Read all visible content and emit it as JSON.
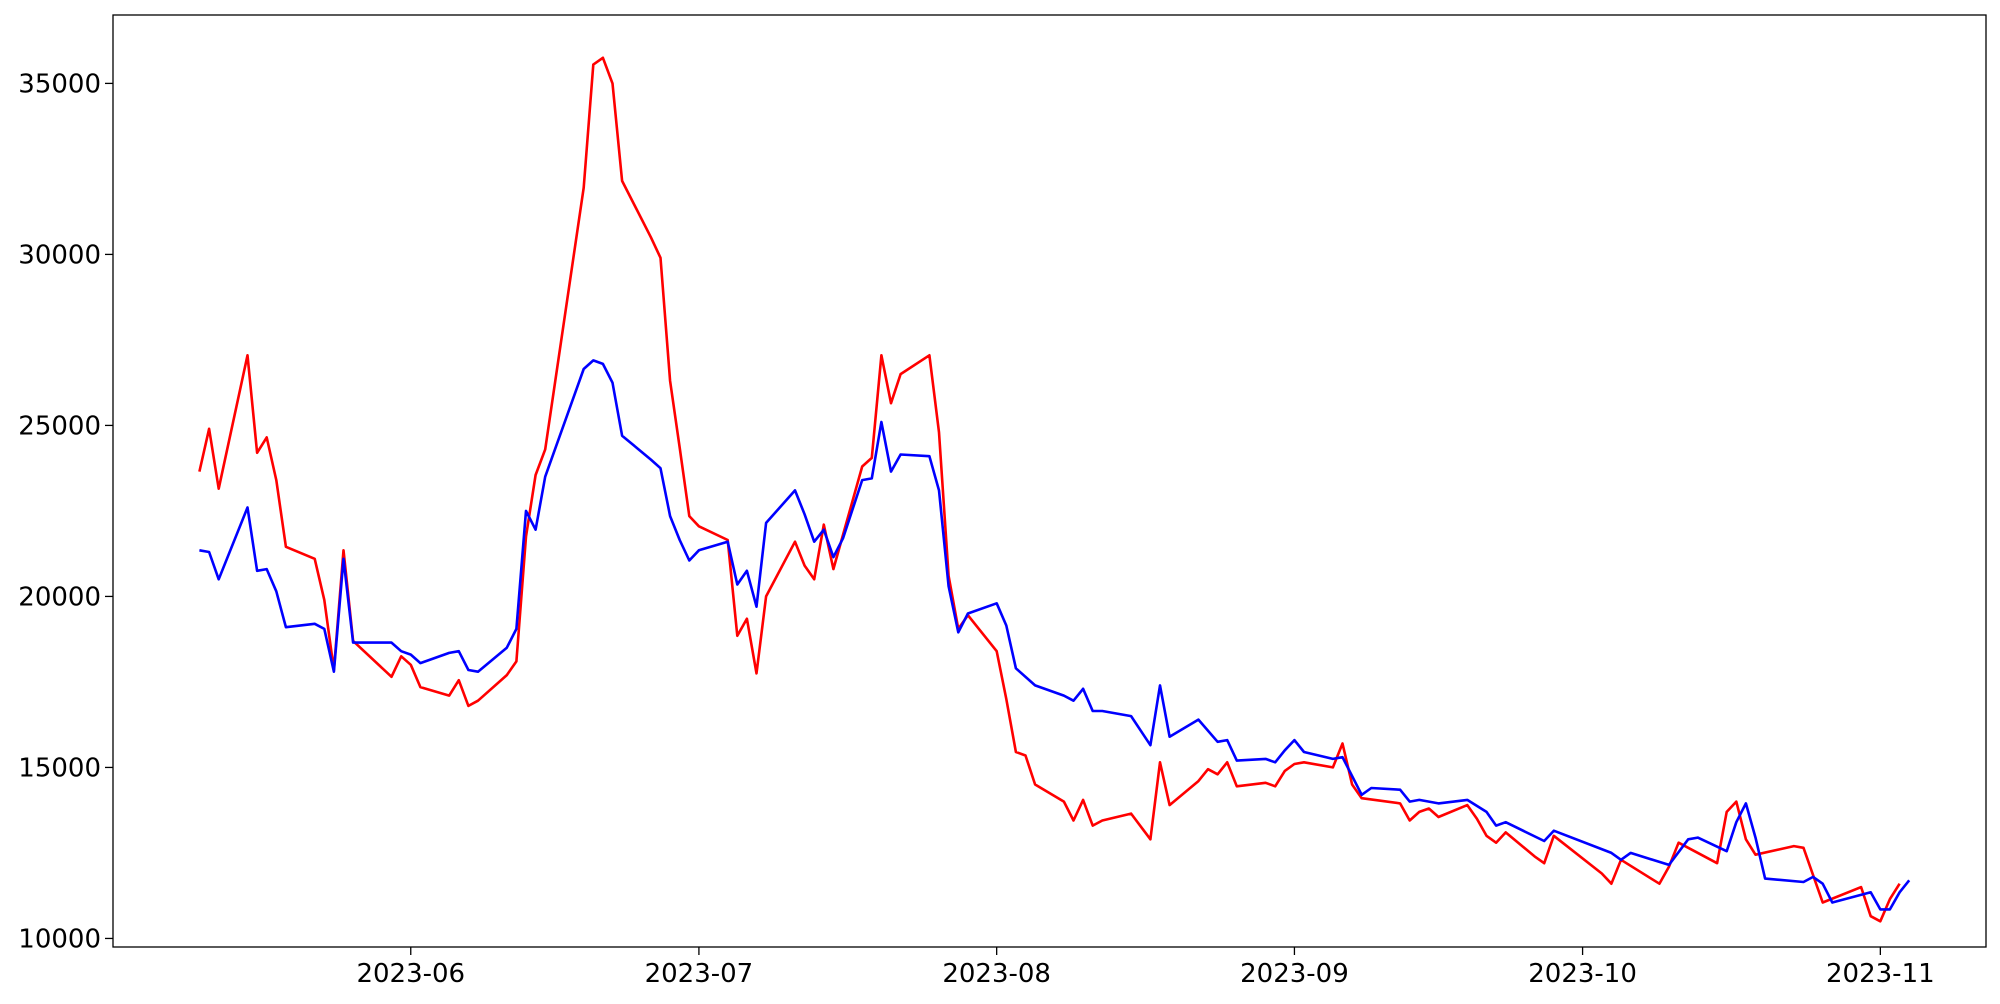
{
  "chart_data": {
    "type": "line",
    "title": "",
    "xlabel": "",
    "ylabel": "",
    "x_axis_type": "date",
    "xlim": [
      "2023-05-01",
      "2023-11-12"
    ],
    "ylim": [
      9750,
      37000
    ],
    "grid": false,
    "x_ticks": [
      {
        "value": "2023-06-01",
        "label": "2023-06"
      },
      {
        "value": "2023-07-01",
        "label": "2023-07"
      },
      {
        "value": "2023-08-01",
        "label": "2023-08"
      },
      {
        "value": "2023-09-01",
        "label": "2023-09"
      },
      {
        "value": "2023-10-01",
        "label": "2023-10"
      },
      {
        "value": "2023-11-01",
        "label": "2023-11"
      }
    ],
    "y_ticks": [
      {
        "value": 10000,
        "label": "10000"
      },
      {
        "value": 15000,
        "label": "15000"
      },
      {
        "value": 20000,
        "label": "20000"
      },
      {
        "value": 25000,
        "label": "25000"
      },
      {
        "value": 30000,
        "label": "30000"
      },
      {
        "value": 35000,
        "label": "35000"
      }
    ],
    "series": [
      {
        "color": "#ff0000",
        "points": [
          [
            "2023-05-10",
            23650
          ],
          [
            "2023-05-11",
            24900
          ],
          [
            "2023-05-12",
            23150
          ],
          [
            "2023-05-15",
            27050
          ],
          [
            "2023-05-16",
            24200
          ],
          [
            "2023-05-17",
            24650
          ],
          [
            "2023-05-18",
            23400
          ],
          [
            "2023-05-19",
            21450
          ],
          [
            "2023-05-22",
            21100
          ],
          [
            "2023-05-23",
            19900
          ],
          [
            "2023-05-24",
            17850
          ],
          [
            "2023-05-25",
            21350
          ],
          [
            "2023-05-26",
            18700
          ],
          [
            "2023-05-30",
            17650
          ],
          [
            "2023-05-31",
            18250
          ],
          [
            "2023-06-01",
            18000
          ],
          [
            "2023-06-02",
            17350
          ],
          [
            "2023-06-05",
            17100
          ],
          [
            "2023-06-06",
            17550
          ],
          [
            "2023-06-07",
            16800
          ],
          [
            "2023-06-08",
            16950
          ],
          [
            "2023-06-11",
            17700
          ],
          [
            "2023-06-12",
            18100
          ],
          [
            "2023-06-13",
            21750
          ],
          [
            "2023-06-14",
            23550
          ],
          [
            "2023-06-15",
            24300
          ],
          [
            "2023-06-19",
            31950
          ],
          [
            "2023-06-20",
            35550
          ],
          [
            "2023-06-21",
            35750
          ],
          [
            "2023-06-22",
            35000
          ],
          [
            "2023-06-23",
            32150
          ],
          [
            "2023-06-26",
            30500
          ],
          [
            "2023-06-27",
            29900
          ],
          [
            "2023-06-28",
            26300
          ],
          [
            "2023-06-29",
            24350
          ],
          [
            "2023-06-30",
            22350
          ],
          [
            "2023-07-01",
            22050
          ],
          [
            "2023-07-04",
            21650
          ],
          [
            "2023-07-05",
            18850
          ],
          [
            "2023-07-06",
            19350
          ],
          [
            "2023-07-07",
            17750
          ],
          [
            "2023-07-08",
            20000
          ],
          [
            "2023-07-11",
            21600
          ],
          [
            "2023-07-12",
            20900
          ],
          [
            "2023-07-13",
            20500
          ],
          [
            "2023-07-14",
            22100
          ],
          [
            "2023-07-15",
            20800
          ],
          [
            "2023-07-16",
            21800
          ],
          [
            "2023-07-18",
            23800
          ],
          [
            "2023-07-19",
            24050
          ],
          [
            "2023-07-20",
            27050
          ],
          [
            "2023-07-21",
            25650
          ],
          [
            "2023-07-22",
            26500
          ],
          [
            "2023-07-25",
            27050
          ],
          [
            "2023-07-26",
            24800
          ],
          [
            "2023-07-27",
            20600
          ],
          [
            "2023-07-28",
            19050
          ],
          [
            "2023-07-29",
            19450
          ],
          [
            "2023-08-01",
            18400
          ],
          [
            "2023-08-02",
            17000
          ],
          [
            "2023-08-03",
            15450
          ],
          [
            "2023-08-04",
            15350
          ],
          [
            "2023-08-05",
            14500
          ],
          [
            "2023-08-08",
            14000
          ],
          [
            "2023-08-09",
            13450
          ],
          [
            "2023-08-10",
            14050
          ],
          [
            "2023-08-11",
            13300
          ],
          [
            "2023-08-12",
            13450
          ],
          [
            "2023-08-15",
            13650
          ],
          [
            "2023-08-17",
            12900
          ],
          [
            "2023-08-18",
            15150
          ],
          [
            "2023-08-19",
            13900
          ],
          [
            "2023-08-22",
            14600
          ],
          [
            "2023-08-23",
            14950
          ],
          [
            "2023-08-24",
            14800
          ],
          [
            "2023-08-25",
            15150
          ],
          [
            "2023-08-26",
            14450
          ],
          [
            "2023-08-29",
            14550
          ],
          [
            "2023-08-30",
            14450
          ],
          [
            "2023-08-31",
            14900
          ],
          [
            "2023-09-01",
            15100
          ],
          [
            "2023-09-02",
            15150
          ],
          [
            "2023-09-05",
            15000
          ],
          [
            "2023-09-06",
            15700
          ],
          [
            "2023-09-07",
            14500
          ],
          [
            "2023-09-08",
            14100
          ],
          [
            "2023-09-12",
            13950
          ],
          [
            "2023-09-13",
            13450
          ],
          [
            "2023-09-14",
            13700
          ],
          [
            "2023-09-15",
            13800
          ],
          [
            "2023-09-16",
            13550
          ],
          [
            "2023-09-19",
            13900
          ],
          [
            "2023-09-20",
            13500
          ],
          [
            "2023-09-21",
            13000
          ],
          [
            "2023-09-22",
            12800
          ],
          [
            "2023-09-23",
            13100
          ],
          [
            "2023-09-26",
            12400
          ],
          [
            "2023-09-27",
            12200
          ],
          [
            "2023-09-28",
            13000
          ],
          [
            "2023-10-03",
            11900
          ],
          [
            "2023-10-04",
            11600
          ],
          [
            "2023-10-05",
            12300
          ],
          [
            "2023-10-09",
            11600
          ],
          [
            "2023-10-10",
            12100
          ],
          [
            "2023-10-11",
            12800
          ],
          [
            "2023-10-15",
            12200
          ],
          [
            "2023-10-16",
            13700
          ],
          [
            "2023-10-17",
            14000
          ],
          [
            "2023-10-18",
            12900
          ],
          [
            "2023-10-19",
            12450
          ],
          [
            "2023-10-23",
            12700
          ],
          [
            "2023-10-24",
            12650
          ],
          [
            "2023-10-26",
            11050
          ],
          [
            "2023-10-30",
            11500
          ],
          [
            "2023-10-31",
            10650
          ],
          [
            "2023-11-01",
            10500
          ],
          [
            "2023-11-02",
            11150
          ],
          [
            "2023-11-03",
            11600
          ]
        ]
      },
      {
        "color": "#0000ff",
        "points": [
          [
            "2023-05-10",
            21350
          ],
          [
            "2023-05-11",
            21300
          ],
          [
            "2023-05-12",
            20500
          ],
          [
            "2023-05-15",
            22600
          ],
          [
            "2023-05-16",
            20750
          ],
          [
            "2023-05-17",
            20800
          ],
          [
            "2023-05-18",
            20150
          ],
          [
            "2023-05-19",
            19100
          ],
          [
            "2023-05-22",
            19200
          ],
          [
            "2023-05-23",
            19050
          ],
          [
            "2023-05-24",
            17800
          ],
          [
            "2023-05-25",
            21100
          ],
          [
            "2023-05-26",
            18650
          ],
          [
            "2023-05-30",
            18650
          ],
          [
            "2023-05-31",
            18400
          ],
          [
            "2023-06-01",
            18300
          ],
          [
            "2023-06-02",
            18050
          ],
          [
            "2023-06-05",
            18350
          ],
          [
            "2023-06-06",
            18400
          ],
          [
            "2023-06-07",
            17850
          ],
          [
            "2023-06-08",
            17800
          ],
          [
            "2023-06-11",
            18500
          ],
          [
            "2023-06-12",
            19050
          ],
          [
            "2023-06-13",
            22500
          ],
          [
            "2023-06-14",
            21950
          ],
          [
            "2023-06-15",
            23500
          ],
          [
            "2023-06-19",
            26650
          ],
          [
            "2023-06-20",
            26900
          ],
          [
            "2023-06-21",
            26800
          ],
          [
            "2023-06-22",
            26250
          ],
          [
            "2023-06-23",
            24700
          ],
          [
            "2023-06-26",
            24000
          ],
          [
            "2023-06-27",
            23750
          ],
          [
            "2023-06-28",
            22350
          ],
          [
            "2023-06-29",
            21650
          ],
          [
            "2023-06-30",
            21050
          ],
          [
            "2023-07-01",
            21350
          ],
          [
            "2023-07-04",
            21600
          ],
          [
            "2023-07-05",
            20350
          ],
          [
            "2023-07-06",
            20750
          ],
          [
            "2023-07-07",
            19700
          ],
          [
            "2023-07-08",
            22150
          ],
          [
            "2023-07-11",
            23100
          ],
          [
            "2023-07-12",
            22400
          ],
          [
            "2023-07-13",
            21600
          ],
          [
            "2023-07-14",
            21950
          ],
          [
            "2023-07-15",
            21150
          ],
          [
            "2023-07-16",
            21700
          ],
          [
            "2023-07-18",
            23400
          ],
          [
            "2023-07-19",
            23450
          ],
          [
            "2023-07-20",
            25100
          ],
          [
            "2023-07-21",
            23650
          ],
          [
            "2023-07-22",
            24150
          ],
          [
            "2023-07-25",
            24100
          ],
          [
            "2023-07-26",
            23100
          ],
          [
            "2023-07-27",
            20300
          ],
          [
            "2023-07-28",
            18950
          ],
          [
            "2023-07-29",
            19500
          ],
          [
            "2023-08-01",
            19800
          ],
          [
            "2023-08-02",
            19150
          ],
          [
            "2023-08-03",
            17900
          ],
          [
            "2023-08-05",
            17400
          ],
          [
            "2023-08-08",
            17100
          ],
          [
            "2023-08-09",
            16950
          ],
          [
            "2023-08-10",
            17300
          ],
          [
            "2023-08-11",
            16650
          ],
          [
            "2023-08-12",
            16650
          ],
          [
            "2023-08-15",
            16500
          ],
          [
            "2023-08-17",
            15650
          ],
          [
            "2023-08-18",
            17400
          ],
          [
            "2023-08-19",
            15900
          ],
          [
            "2023-08-22",
            16400
          ],
          [
            "2023-08-24",
            15750
          ],
          [
            "2023-08-25",
            15800
          ],
          [
            "2023-08-26",
            15200
          ],
          [
            "2023-08-29",
            15250
          ],
          [
            "2023-08-30",
            15150
          ],
          [
            "2023-08-31",
            15500
          ],
          [
            "2023-09-01",
            15800
          ],
          [
            "2023-09-02",
            15450
          ],
          [
            "2023-09-05",
            15250
          ],
          [
            "2023-09-06",
            15300
          ],
          [
            "2023-09-08",
            14200
          ],
          [
            "2023-09-09",
            14400
          ],
          [
            "2023-09-12",
            14350
          ],
          [
            "2023-09-13",
            14000
          ],
          [
            "2023-09-14",
            14050
          ],
          [
            "2023-09-16",
            13950
          ],
          [
            "2023-09-19",
            14050
          ],
          [
            "2023-09-21",
            13700
          ],
          [
            "2023-09-22",
            13300
          ],
          [
            "2023-09-23",
            13400
          ],
          [
            "2023-09-27",
            12850
          ],
          [
            "2023-09-28",
            13150
          ],
          [
            "2023-10-04",
            12500
          ],
          [
            "2023-10-05",
            12300
          ],
          [
            "2023-10-06",
            12500
          ],
          [
            "2023-10-10",
            12150
          ],
          [
            "2023-10-12",
            12900
          ],
          [
            "2023-10-13",
            12950
          ],
          [
            "2023-10-16",
            12550
          ],
          [
            "2023-10-17",
            13400
          ],
          [
            "2023-10-18",
            13950
          ],
          [
            "2023-10-19",
            12950
          ],
          [
            "2023-10-20",
            11750
          ],
          [
            "2023-10-24",
            11650
          ],
          [
            "2023-10-25",
            11800
          ],
          [
            "2023-10-26",
            11600
          ],
          [
            "2023-10-27",
            11050
          ],
          [
            "2023-10-31",
            11350
          ],
          [
            "2023-11-01",
            10850
          ],
          [
            "2023-11-02",
            10850
          ],
          [
            "2023-11-03",
            11350
          ],
          [
            "2023-11-04",
            11700
          ]
        ]
      }
    ]
  }
}
